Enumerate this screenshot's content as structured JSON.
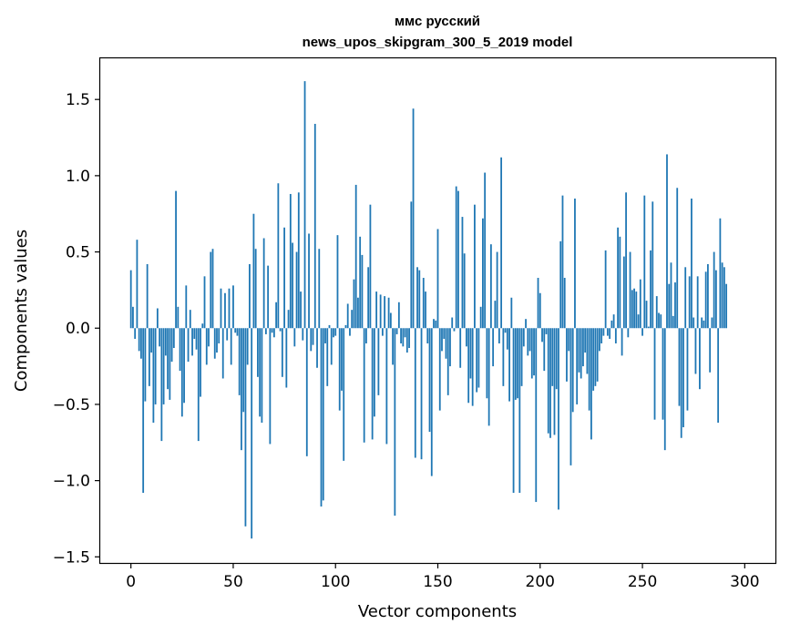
{
  "chart_data": {
    "type": "bar",
    "title": "ммс русский",
    "subtitle": "news_upos_skipgram_300_5_2019 model",
    "xlabel": "Vector components",
    "ylabel": "Components values",
    "xlim": [
      -15,
      315
    ],
    "ylim": [
      -1.54,
      1.77
    ],
    "x_ticks": [
      0,
      50,
      100,
      150,
      200,
      250,
      300
    ],
    "y_ticks": [
      -1.5,
      -1.0,
      -0.5,
      0.0,
      0.5,
      1.0,
      1.5
    ],
    "y_tick_labels": [
      "−1.5",
      "−1.0",
      "−0.5",
      "0.0",
      "0.5",
      "1.0",
      "1.5"
    ],
    "bar_color": "#1f77b4",
    "values": [
      0.38,
      0.14,
      -0.07,
      0.58,
      -0.15,
      -0.2,
      -1.08,
      -0.48,
      0.42,
      -0.38,
      -0.16,
      -0.62,
      -0.5,
      0.13,
      -0.12,
      -0.74,
      -0.5,
      -0.18,
      -0.4,
      -0.47,
      -0.22,
      -0.13,
      0.9,
      0.14,
      -0.28,
      -0.58,
      -0.49,
      0.28,
      -0.22,
      0.12,
      -0.18,
      -0.07,
      -0.14,
      -0.74,
      -0.45,
      0.03,
      0.34,
      -0.24,
      -0.12,
      0.5,
      0.52,
      -0.2,
      -0.16,
      -0.1,
      0.26,
      -0.33,
      0.23,
      -0.08,
      0.26,
      -0.24,
      0.28,
      -0.03,
      -0.05,
      -0.44,
      -0.8,
      -0.55,
      -1.3,
      -0.24,
      0.42,
      -1.38,
      0.75,
      0.52,
      -0.32,
      -0.58,
      -0.62,
      0.59,
      -0.04,
      0.41,
      -0.76,
      -0.03,
      -0.06,
      0.17,
      0.95,
      -0.02,
      -0.32,
      0.66,
      -0.39,
      0.12,
      0.88,
      0.56,
      -0.12,
      0.5,
      0.89,
      0.24,
      -0.08,
      1.62,
      -0.84,
      0.62,
      -0.15,
      -0.11,
      1.34,
      -0.26,
      0.52,
      -1.17,
      -1.13,
      -0.1,
      -0.38,
      0.02,
      -0.24,
      -0.06,
      -0.05,
      0.61,
      -0.54,
      -0.41,
      -0.87,
      0.02,
      0.16,
      -0.05,
      0.12,
      0.32,
      0.94,
      0.2,
      0.6,
      0.48,
      -0.75,
      -0.1,
      0.4,
      0.81,
      -0.73,
      -0.58,
      0.24,
      -0.44,
      0.22,
      -0.05,
      0.21,
      -0.76,
      0.2,
      0.1,
      -0.24,
      -1.23,
      -0.04,
      0.17,
      -0.1,
      -0.12,
      -0.06,
      -0.16,
      -0.13,
      0.83,
      1.44,
      -0.85,
      0.4,
      0.38,
      -0.86,
      0.33,
      0.24,
      -0.1,
      -0.68,
      -0.97,
      0.06,
      0.05,
      0.65,
      -0.54,
      -0.15,
      -0.07,
      -0.2,
      -0.44,
      -0.25,
      0.07,
      -0.02,
      0.93,
      0.9,
      -0.26,
      0.73,
      0.49,
      -0.12,
      -0.49,
      -0.33,
      -0.51,
      0.81,
      -0.42,
      -0.39,
      0.14,
      0.72,
      1.02,
      -0.46,
      -0.64,
      0.55,
      -0.25,
      0.18,
      0.5,
      -0.1,
      1.12,
      -0.38,
      -0.03,
      -0.14,
      -0.48,
      0.2,
      -1.08,
      -0.47,
      -0.46,
      -1.08,
      -0.38,
      -0.12,
      0.06,
      -0.18,
      -0.15,
      -0.33,
      -0.31,
      -1.14,
      0.33,
      0.23,
      -0.09,
      -0.28,
      -0.04,
      -0.69,
      -0.72,
      -0.38,
      -0.7,
      -0.4,
      -1.19,
      0.57,
      0.87,
      0.33,
      -0.35,
      -0.15,
      -0.9,
      -0.55,
      0.85,
      -0.5,
      -0.29,
      -0.33,
      -0.25,
      -0.16,
      -0.3,
      -0.54,
      -0.73,
      -0.41,
      -0.38,
      -0.35,
      -0.15,
      -0.1,
      -0.05,
      0.51,
      -0.05,
      -0.07,
      0.05,
      0.09,
      -0.1,
      0.66,
      0.6,
      -0.18,
      0.47,
      0.89,
      -0.06,
      0.5,
      0.25,
      0.26,
      0.24,
      0.09,
      0.32,
      -0.05,
      0.87,
      0.18,
      0.01,
      0.51,
      0.83,
      -0.6,
      0.21,
      0.1,
      0.09,
      -0.6,
      -0.8,
      1.14,
      0.29,
      0.43,
      0.08,
      0.3,
      0.92,
      -0.51,
      -0.72,
      -0.65,
      0.4,
      -0.54,
      0.34,
      0.85,
      0.07,
      -0.3,
      0.34,
      -0.4,
      0.07,
      0.05,
      0.37,
      0.42,
      -0.29,
      0.07,
      0.5,
      0.38,
      -0.62,
      0.72,
      0.43,
      0.4,
      0.29
    ]
  }
}
